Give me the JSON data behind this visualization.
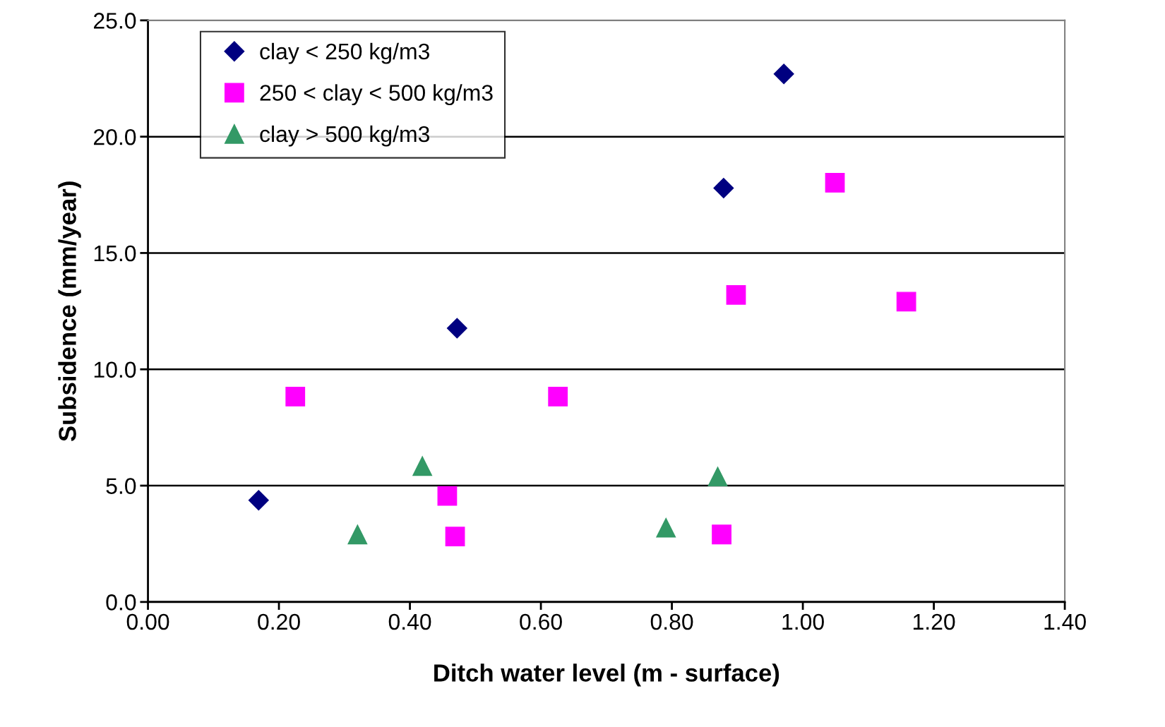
{
  "chart_data": {
    "type": "scatter",
    "xlabel": "Ditch water level (m - surface)",
    "ylabel": "Subsidence (mm/year)",
    "series": [
      {
        "name": "clay < 250 kg/m3",
        "color": "#000080",
        "marker": "diamond",
        "x": [
          0.169,
          0.472,
          0.879,
          0.971
        ],
        "values": [
          4.37,
          11.77,
          17.79,
          22.7
        ]
      },
      {
        "name": "250 < clay < 500 kg/m3",
        "color": "#ff00ff",
        "marker": "square",
        "x": [
          0.225,
          0.457,
          0.469,
          0.626,
          0.898,
          1.049,
          0.876,
          1.158
        ],
        "values": [
          8.83,
          4.56,
          2.81,
          8.83,
          13.2,
          18.02,
          2.9,
          12.91
        ]
      },
      {
        "name": "clay > 500 kg/m3",
        "color": "#339966",
        "marker": "triangle",
        "x": [
          0.32,
          0.419,
          0.791,
          0.87
        ],
        "values": [
          2.9,
          5.84,
          3.19,
          5.39
        ]
      }
    ],
    "xlim": [
      0,
      1.4
    ],
    "xticks": [
      {
        "value": 0,
        "label": "0.00"
      },
      {
        "value": 0.2,
        "label": "0.20"
      },
      {
        "value": 0.4,
        "label": "0.40"
      },
      {
        "value": 0.6,
        "label": "0.60"
      },
      {
        "value": 0.8,
        "label": "0.80"
      },
      {
        "value": 1.0,
        "label": "1.00"
      },
      {
        "value": 1.2,
        "label": "1.20"
      },
      {
        "value": 1.4,
        "label": "1.40"
      }
    ],
    "ylim": [
      0,
      25
    ],
    "yticks": [
      {
        "value": 0,
        "label": "0.0"
      },
      {
        "value": 5,
        "label": "5.0"
      },
      {
        "value": 10,
        "label": "10.0"
      },
      {
        "value": 15,
        "label": "15.0"
      },
      {
        "value": 20,
        "label": "20.0"
      },
      {
        "value": 25,
        "label": "25.0"
      }
    ],
    "grid": "y",
    "legend": "top left"
  }
}
